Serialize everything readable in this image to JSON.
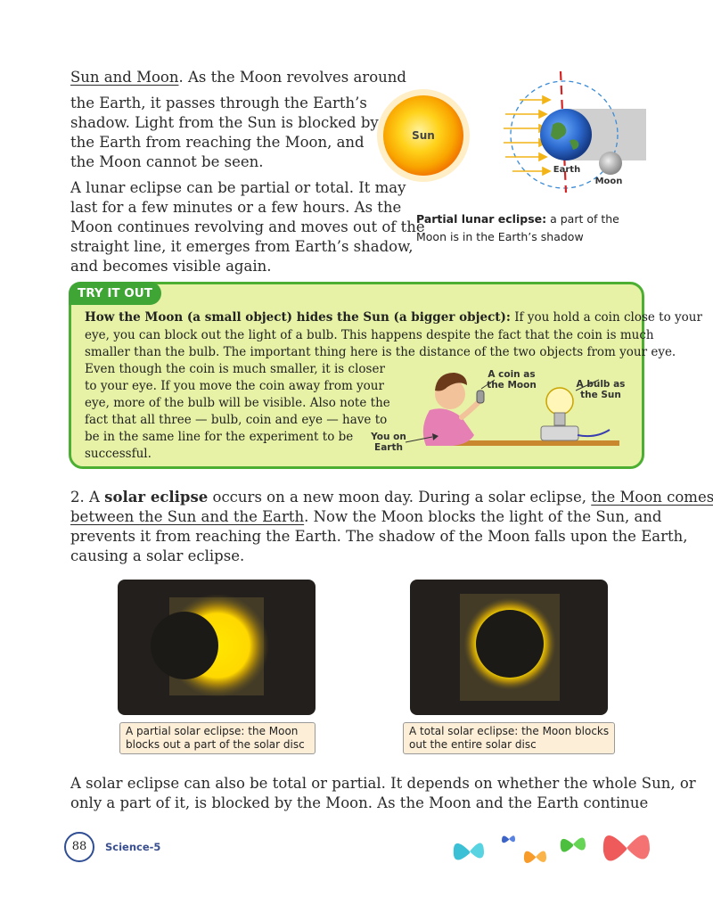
{
  "top_text": {
    "line1": "Sun and Moon",
    "line1_rest": ". As the Moon revolves around",
    "line2": "the Earth, it passes through the Earth’s",
    "line3": "shadow. Light from the Sun is blocked by",
    "line4": "the Earth from reaching the Moon, and",
    "line5": "the Moon cannot be seen."
  },
  "lunar_para": {
    "l1": "A lunar eclipse can be partial or total. It may",
    "l2": "last for a few minutes or a few hours. As the",
    "l3": "Moon continues revolving and moves out of the",
    "l4": "straight line, it emerges from Earth’s shadow,",
    "l5": "and becomes visible again."
  },
  "lunar_diagram": {
    "sun_label": "Sun",
    "earth_label": "Earth",
    "moon_label": "Moon",
    "caption_bold": "Partial lunar eclipse:",
    "caption_rest": " a part of the",
    "caption_l2": "Moon is in the Earth’s shadow"
  },
  "try_it_out": {
    "tab": "TRY IT OUT",
    "bold": "How the Moon (a small object) hides the Sun (a bigger object):",
    "l1_rest": " If you hold a coin close to your",
    "l2": "eye, you can block out the light of a bulb. This happens despite the fact that the coin is much",
    "l3": "smaller than the bulb. The important thing here is the distance of the two objects from your eye.",
    "l4": "Even though the coin is much smaller, it is closer",
    "l5": "to your eye. If you move the coin away from your",
    "l6": "eye, more of the bulb will be visible. Also note the",
    "l7": "fact that all three — bulb, coin and eye — have to",
    "l8": "be in the same line for the experiment to be",
    "l9": "successful.",
    "coin_label_1": "A coin as",
    "coin_label_2": "the Moon",
    "bulb_label_1": "A bulb as",
    "bulb_label_2": "the Sun",
    "you_label_1": "You on",
    "you_label_2": "Earth"
  },
  "solar": {
    "num": "2. A ",
    "bold": "solar eclipse",
    "l1_mid": " occurs on a new moon day. During a solar eclipse, ",
    "l1_u": "the Moon comes",
    "l2_u": "between the Sun and the Earth",
    "l2_rest": ". Now the Moon blocks the light of the Sun, and",
    "l3": "prevents it from reaching the Earth. The shadow of the Moon falls upon the Earth,",
    "l4": "causing a solar eclipse."
  },
  "eclipse_captions": {
    "partial_1": "A partial solar eclipse: the Moon",
    "partial_2": "blocks out a part of the solar disc",
    "total_1": "A total solar eclipse: the Moon blocks",
    "total_2": "out the entire solar disc"
  },
  "bottom_text": {
    "l1": "A solar eclipse can also be total or partial. It depends on whether the whole Sun, or",
    "l2": "only a part of it, is blocked by the Moon. As the Moon and the Earth continue"
  },
  "footer": {
    "page_number": "88",
    "book": "Science-5"
  },
  "colors": {
    "box_green": "#4caf32",
    "box_fill": "#e7f2a6",
    "sun_yellow": "#f7d000",
    "footer_blue": "#2f4e94"
  }
}
